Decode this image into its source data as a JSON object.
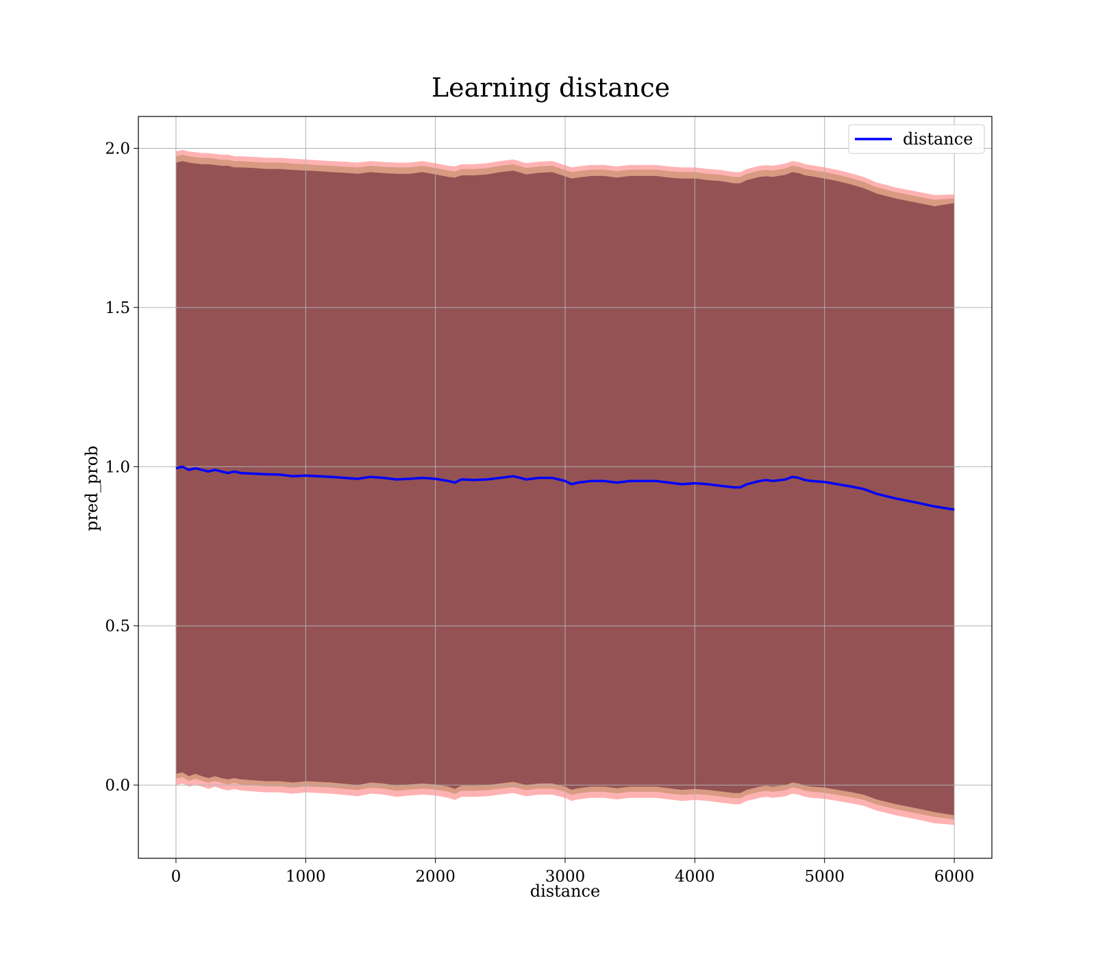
{
  "chart_data": {
    "type": "line",
    "title": "Learning distance",
    "xlabel": "distance",
    "ylabel": "pred_prob",
    "xlim": [
      -290,
      6290
    ],
    "ylim": [
      -0.23,
      2.1
    ],
    "x_ticks": [
      "0",
      "1000",
      "2000",
      "3000",
      "4000",
      "5000",
      "6000"
    ],
    "y_ticks": [
      "0.0",
      "0.5",
      "1.0",
      "1.5",
      "2.0"
    ],
    "grid": true,
    "legend_position": "top-right",
    "series": [
      {
        "name": "distance",
        "color": "#0000ff",
        "x": [
          0,
          50,
          100,
          150,
          200,
          250,
          300,
          350,
          400,
          450,
          500,
          600,
          700,
          800,
          900,
          1000,
          1100,
          1200,
          1300,
          1400,
          1500,
          1600,
          1700,
          1800,
          1900,
          2000,
          2100,
          2150,
          2200,
          2300,
          2400,
          2500,
          2600,
          2700,
          2800,
          2900,
          3000,
          3050,
          3100,
          3200,
          3300,
          3400,
          3500,
          3600,
          3700,
          3800,
          3900,
          4000,
          4100,
          4200,
          4300,
          4350,
          4400,
          4500,
          4550,
          4600,
          4700,
          4750,
          4800,
          4850,
          4900,
          5000,
          5100,
          5200,
          5300,
          5400,
          5550,
          5700,
          5850,
          6000
        ],
        "y": [
          0.995,
          1.0,
          0.99,
          0.995,
          0.99,
          0.985,
          0.99,
          0.985,
          0.98,
          0.985,
          0.98,
          0.978,
          0.976,
          0.975,
          0.97,
          0.972,
          0.97,
          0.968,
          0.965,
          0.962,
          0.968,
          0.965,
          0.96,
          0.962,
          0.965,
          0.962,
          0.955,
          0.95,
          0.96,
          0.958,
          0.96,
          0.965,
          0.97,
          0.96,
          0.965,
          0.965,
          0.955,
          0.945,
          0.95,
          0.955,
          0.955,
          0.95,
          0.955,
          0.955,
          0.955,
          0.95,
          0.945,
          0.948,
          0.945,
          0.94,
          0.935,
          0.935,
          0.945,
          0.955,
          0.958,
          0.955,
          0.96,
          0.968,
          0.965,
          0.958,
          0.955,
          0.952,
          0.945,
          0.938,
          0.93,
          0.915,
          0.9,
          0.888,
          0.875,
          0.865
        ]
      }
    ],
    "band_inner": {
      "color": "#6a2639",
      "opacity": 0.62,
      "upper": [
        1.955,
        1.96,
        1.955,
        1.952,
        1.95,
        1.95,
        1.948,
        1.945,
        1.945,
        1.94,
        1.94,
        1.938,
        1.935,
        1.935,
        1.932,
        1.93,
        1.928,
        1.925,
        1.923,
        1.92,
        1.925,
        1.922,
        1.92,
        1.92,
        1.925,
        1.918,
        1.91,
        1.908,
        1.915,
        1.915,
        1.918,
        1.925,
        1.93,
        1.918,
        1.923,
        1.925,
        1.912,
        1.905,
        1.908,
        1.913,
        1.913,
        1.908,
        1.913,
        1.913,
        1.913,
        1.908,
        1.905,
        1.905,
        1.9,
        1.897,
        1.89,
        1.89,
        1.9,
        1.91,
        1.912,
        1.91,
        1.917,
        1.925,
        1.922,
        1.915,
        1.912,
        1.905,
        1.897,
        1.887,
        1.875,
        1.858,
        1.842,
        1.83,
        1.818,
        1.828
      ],
      "lower": [
        0.035,
        0.04,
        0.028,
        0.035,
        0.028,
        0.022,
        0.028,
        0.022,
        0.018,
        0.022,
        0.018,
        0.015,
        0.012,
        0.012,
        0.008,
        0.012,
        0.01,
        0.008,
        0.004,
        0.0,
        0.008,
        0.005,
        -0.002,
        0.002,
        0.005,
        0.002,
        -0.005,
        -0.012,
        -0.002,
        -0.002,
        0.0,
        0.005,
        0.01,
        0.0,
        0.005,
        0.005,
        -0.005,
        -0.015,
        -0.01,
        -0.005,
        -0.005,
        -0.01,
        -0.005,
        -0.005,
        -0.005,
        -0.01,
        -0.015,
        -0.012,
        -0.015,
        -0.02,
        -0.025,
        -0.025,
        -0.015,
        -0.005,
        -0.002,
        -0.005,
        0.0,
        0.008,
        0.005,
        -0.002,
        -0.005,
        -0.008,
        -0.015,
        -0.022,
        -0.03,
        -0.045,
        -0.06,
        -0.072,
        -0.085,
        -0.095
      ]
    },
    "band_outer": {
      "color": "#ff0000",
      "opacity": 0.3,
      "upper": [
        1.99,
        1.995,
        1.99,
        1.988,
        1.985,
        1.985,
        1.982,
        1.98,
        1.98,
        1.975,
        1.975,
        1.973,
        1.97,
        1.97,
        1.967,
        1.965,
        1.962,
        1.96,
        1.958,
        1.955,
        1.96,
        1.957,
        1.955,
        1.955,
        1.96,
        1.953,
        1.945,
        1.943,
        1.95,
        1.95,
        1.953,
        1.96,
        1.965,
        1.953,
        1.958,
        1.96,
        1.947,
        1.94,
        1.943,
        1.948,
        1.948,
        1.943,
        1.948,
        1.948,
        1.948,
        1.943,
        1.94,
        1.94,
        1.935,
        1.932,
        1.925,
        1.925,
        1.935,
        1.945,
        1.947,
        1.945,
        1.952,
        1.96,
        1.957,
        1.95,
        1.947,
        1.94,
        1.932,
        1.922,
        1.91,
        1.893,
        1.877,
        1.865,
        1.853,
        1.855
      ],
      "lower": [
        0.0,
        0.005,
        -0.005,
        0.0,
        -0.005,
        -0.012,
        -0.005,
        -0.012,
        -0.017,
        -0.012,
        -0.017,
        -0.02,
        -0.023,
        -0.023,
        -0.027,
        -0.023,
        -0.025,
        -0.027,
        -0.031,
        -0.035,
        -0.027,
        -0.03,
        -0.037,
        -0.033,
        -0.03,
        -0.033,
        -0.04,
        -0.047,
        -0.037,
        -0.037,
        -0.035,
        -0.03,
        -0.025,
        -0.035,
        -0.03,
        -0.03,
        -0.04,
        -0.05,
        -0.045,
        -0.04,
        -0.04,
        -0.045,
        -0.04,
        -0.04,
        -0.04,
        -0.045,
        -0.05,
        -0.047,
        -0.05,
        -0.055,
        -0.06,
        -0.06,
        -0.05,
        -0.04,
        -0.037,
        -0.04,
        -0.035,
        -0.027,
        -0.03,
        -0.037,
        -0.04,
        -0.043,
        -0.05,
        -0.057,
        -0.065,
        -0.08,
        -0.095,
        -0.107,
        -0.12,
        -0.125
      ]
    },
    "band_middle": {
      "color": "#b8865a",
      "opacity": 0.55,
      "upper": [
        1.975,
        1.98,
        1.975,
        1.972,
        1.97,
        1.97,
        1.967,
        1.964,
        1.964,
        1.96,
        1.96,
        1.957,
        1.955,
        1.955,
        1.952,
        1.95,
        1.947,
        1.945,
        1.942,
        1.94,
        1.945,
        1.942,
        1.94,
        1.94,
        1.945,
        1.938,
        1.93,
        1.927,
        1.935,
        1.935,
        1.938,
        1.945,
        1.95,
        1.938,
        1.943,
        1.945,
        1.932,
        1.925,
        1.928,
        1.933,
        1.933,
        1.928,
        1.933,
        1.933,
        1.933,
        1.928,
        1.925,
        1.925,
        1.92,
        1.917,
        1.91,
        1.91,
        1.92,
        1.93,
        1.932,
        1.93,
        1.937,
        1.945,
        1.942,
        1.935,
        1.932,
        1.925,
        1.917,
        1.907,
        1.895,
        1.878,
        1.862,
        1.85,
        1.838,
        1.843
      ],
      "lower": [
        0.02,
        0.025,
        0.013,
        0.02,
        0.013,
        0.007,
        0.013,
        0.007,
        0.002,
        0.007,
        0.002,
        -0.001,
        -0.004,
        -0.004,
        -0.008,
        -0.004,
        -0.006,
        -0.008,
        -0.012,
        -0.016,
        -0.008,
        -0.011,
        -0.018,
        -0.014,
        -0.011,
        -0.014,
        -0.021,
        -0.028,
        -0.018,
        -0.018,
        -0.016,
        -0.011,
        -0.006,
        -0.016,
        -0.011,
        -0.011,
        -0.021,
        -0.031,
        -0.026,
        -0.021,
        -0.021,
        -0.026,
        -0.021,
        -0.021,
        -0.021,
        -0.026,
        -0.031,
        -0.028,
        -0.031,
        -0.036,
        -0.041,
        -0.041,
        -0.031,
        -0.021,
        -0.018,
        -0.021,
        -0.016,
        -0.008,
        -0.011,
        -0.018,
        -0.021,
        -0.024,
        -0.031,
        -0.038,
        -0.046,
        -0.061,
        -0.076,
        -0.088,
        -0.1,
        -0.108
      ]
    }
  }
}
